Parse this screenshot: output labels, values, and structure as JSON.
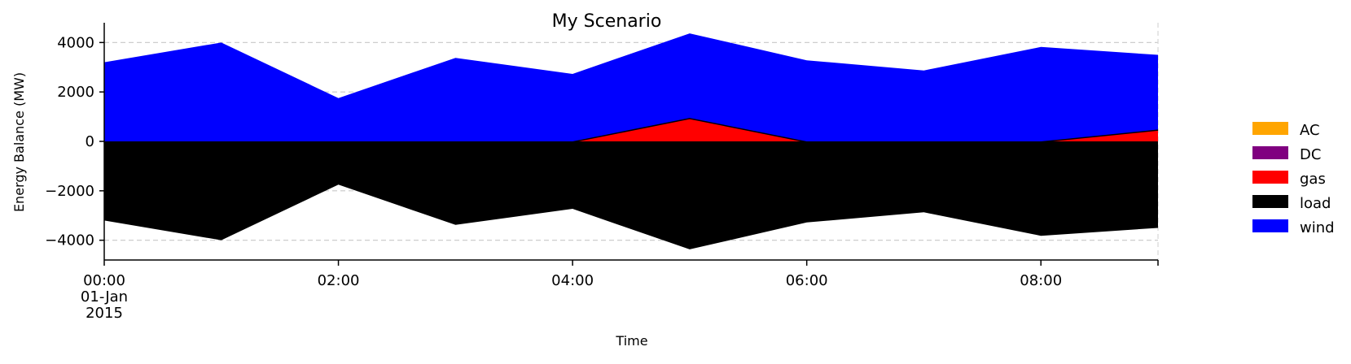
{
  "chart_data": {
    "type": "area",
    "title": "My Scenario",
    "xlabel": "Time",
    "ylabel": "Energy Balance (MW)",
    "x": [
      "00:00",
      "01:00",
      "02:00",
      "03:00",
      "04:00",
      "05:00",
      "06:00",
      "07:00",
      "08:00",
      "09:00"
    ],
    "x_ticks": [
      {
        "x": 0,
        "lines": [
          "00:00",
          "01-Jan",
          "2015"
        ]
      },
      {
        "x": 2,
        "lines": [
          "02:00"
        ]
      },
      {
        "x": 4,
        "lines": [
          "04:00"
        ]
      },
      {
        "x": 6,
        "lines": [
          "06:00"
        ]
      },
      {
        "x": 8,
        "lines": [
          "08:00"
        ]
      },
      {
        "x": 9,
        "lines": []
      }
    ],
    "y_ticks": [
      -4000,
      -2000,
      0,
      2000,
      4000
    ],
    "xlim": [
      0,
      9
    ],
    "ylim": [
      -4800,
      4800
    ],
    "grid": "horizontal dashed",
    "legend_position": "right",
    "series": [
      {
        "name": "AC",
        "color": "#FFA500",
        "values": [
          0,
          0,
          0,
          0,
          0,
          0,
          0,
          0,
          0,
          0
        ]
      },
      {
        "name": "DC",
        "color": "#800080",
        "values": [
          0,
          0,
          0,
          0,
          0,
          0,
          0,
          0,
          0,
          0
        ]
      },
      {
        "name": "gas",
        "color": "#FF0000",
        "values": [
          0,
          0,
          0,
          0,
          0,
          950,
          0,
          0,
          0,
          480
        ]
      },
      {
        "name": "load",
        "color": "#000000",
        "values": [
          -3200,
          -4000,
          -1750,
          -3380,
          -2730,
          -4370,
          -3280,
          -2870,
          -3820,
          -3500
        ]
      },
      {
        "name": "wind",
        "color": "#0000FF",
        "values": [
          3200,
          4000,
          1750,
          3380,
          2730,
          3420,
          3280,
          2870,
          3820,
          3020
        ]
      }
    ]
  }
}
